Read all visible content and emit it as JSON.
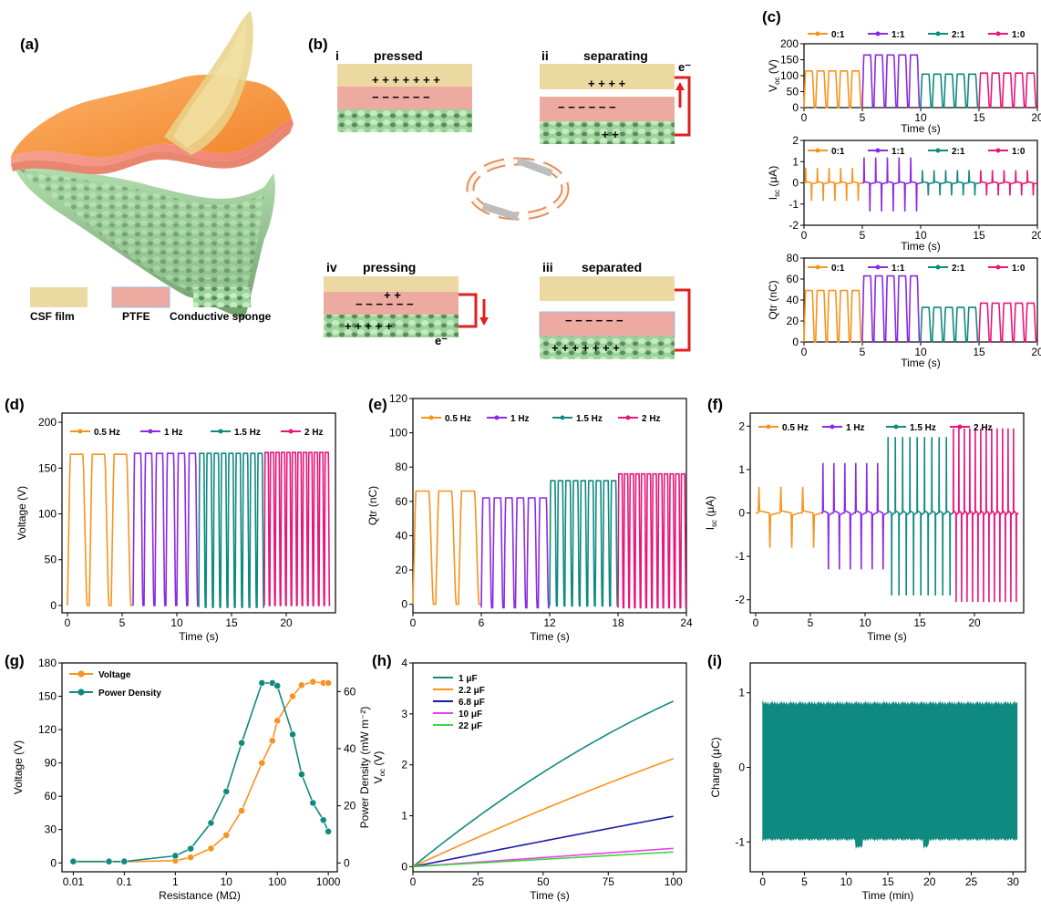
{
  "colors": {
    "orange": "#f7931e",
    "purple": "#8a2be2",
    "teal": "#0f8a80",
    "pink": "#e8177a",
    "blue": "#1a1aa8",
    "magenta": "#f03cf0",
    "green": "#3ed63e",
    "csf": "#ecd9a1",
    "ptfe": "#ecaaa0",
    "sponge": "#a9d8a6",
    "wire": "#e02020"
  },
  "panel_a": {
    "label": "(a)",
    "legend": [
      "CSF film",
      "PTFE",
      "Conductive sponge"
    ]
  },
  "panel_b": {
    "label": "(b)",
    "steps": [
      {
        "num": "i",
        "title": "pressed"
      },
      {
        "num": "ii",
        "title": "separating",
        "electron": "e⁻"
      },
      {
        "num": "iv",
        "title": "pressing",
        "electron": "e⁻"
      },
      {
        "num": "iii",
        "title": "separated"
      }
    ]
  },
  "panel_c": {
    "label": "(c)"
  },
  "panel_d": {
    "label": "(d)"
  },
  "panel_e": {
    "label": "(e)"
  },
  "panel_f": {
    "label": "(f)"
  },
  "panel_g": {
    "label": "(g)"
  },
  "panel_h": {
    "label": "(h)"
  },
  "panel_i": {
    "label": "(i)"
  },
  "chart_data": [
    {
      "id": "c1",
      "type": "line",
      "ylabel": "V",
      "ylabel_sub": "oc",
      "ylabel_unit": " (V)",
      "xlabel": "Time (s)",
      "xlim": [
        0,
        20
      ],
      "ylim": [
        0,
        200
      ],
      "xticks": [
        0,
        5,
        10,
        15,
        20
      ],
      "yticks": [
        0,
        50,
        100,
        150,
        200
      ],
      "series": [
        {
          "name": "0:1",
          "color": "orange",
          "x_range": [
            0,
            5
          ],
          "cycles": 5,
          "min": 0,
          "max": 115
        },
        {
          "name": "1:1",
          "color": "purple",
          "x_range": [
            5,
            10
          ],
          "cycles": 5,
          "min": 0,
          "max": 165
        },
        {
          "name": "2:1",
          "color": "teal",
          "x_range": [
            10,
            15
          ],
          "cycles": 5,
          "min": 0,
          "max": 105
        },
        {
          "name": "1:0",
          "color": "pink",
          "x_range": [
            15,
            20
          ],
          "cycles": 5,
          "min": 0,
          "max": 108
        }
      ]
    },
    {
      "id": "c2",
      "type": "line",
      "ylabel": "I",
      "ylabel_sub": "sc",
      "ylabel_unit": " (μA)",
      "xlabel": "Time (s)",
      "xlim": [
        0,
        20
      ],
      "ylim": [
        -2,
        2
      ],
      "xticks": [
        0,
        5,
        10,
        15,
        20
      ],
      "yticks": [
        -2,
        -1,
        0,
        1,
        2
      ],
      "series": [
        {
          "name": "0:1",
          "color": "orange",
          "x_range": [
            0,
            5
          ],
          "cycles": 5,
          "peak_pos": 0.7,
          "peak_neg": -0.85
        },
        {
          "name": "1:1",
          "color": "purple",
          "x_range": [
            5,
            10
          ],
          "cycles": 5,
          "peak_pos": 1.2,
          "peak_neg": -1.35
        },
        {
          "name": "2:1",
          "color": "teal",
          "x_range": [
            10,
            15
          ],
          "cycles": 5,
          "peak_pos": 0.6,
          "peak_neg": -0.6
        },
        {
          "name": "1:0",
          "color": "pink",
          "x_range": [
            15,
            20
          ],
          "cycles": 5,
          "peak_pos": 0.6,
          "peak_neg": -0.6
        }
      ]
    },
    {
      "id": "c3",
      "type": "line",
      "ylabel": "Qtr (nC)",
      "xlabel": "Time (s)",
      "xlim": [
        0,
        20
      ],
      "ylim": [
        0,
        80
      ],
      "xticks": [
        0,
        5,
        10,
        15,
        20
      ],
      "yticks": [
        0,
        20,
        40,
        60,
        80
      ],
      "series": [
        {
          "name": "0:1",
          "color": "orange",
          "x_range": [
            0,
            5
          ],
          "cycles": 5,
          "min": 0,
          "max": 49
        },
        {
          "name": "1:1",
          "color": "purple",
          "x_range": [
            5,
            10
          ],
          "cycles": 5,
          "min": 0,
          "max": 63
        },
        {
          "name": "2:1",
          "color": "teal",
          "x_range": [
            10,
            15
          ],
          "cycles": 5,
          "min": 0,
          "max": 33
        },
        {
          "name": "1:0",
          "color": "pink",
          "x_range": [
            15,
            20
          ],
          "cycles": 5,
          "min": 0,
          "max": 37
        }
      ]
    },
    {
      "id": "d",
      "type": "line",
      "ylabel": "Voltage (V)",
      "xlabel": "Time (s)",
      "xlim": [
        -0.5,
        24.5
      ],
      "ylim": [
        -8,
        210
      ],
      "xticks": [
        0,
        5,
        10,
        15,
        20
      ],
      "yticks": [
        0,
        50,
        100,
        150,
        200
      ],
      "series": [
        {
          "name": "0.5 Hz",
          "color": "orange",
          "x_range": [
            0,
            6
          ],
          "cycles": 3,
          "min": 0,
          "max": 165
        },
        {
          "name": "1 Hz",
          "color": "purple",
          "x_range": [
            6,
            12
          ],
          "cycles": 6,
          "min": 0,
          "max": 166
        },
        {
          "name": "1.5 Hz",
          "color": "teal",
          "x_range": [
            12,
            18
          ],
          "cycles": 9,
          "min": -2,
          "max": 166
        },
        {
          "name": "2 Hz",
          "color": "pink",
          "x_range": [
            18,
            24
          ],
          "cycles": 12,
          "min": 0,
          "max": 167
        }
      ]
    },
    {
      "id": "e",
      "type": "line",
      "ylabel": "Qtr (nC)",
      "xlabel": "Time (s)",
      "xlim": [
        0,
        24
      ],
      "ylim": [
        -5,
        120
      ],
      "xticks": [
        0,
        6,
        12,
        18,
        24
      ],
      "yticks": [
        0,
        20,
        40,
        60,
        80,
        100,
        120
      ],
      "series": [
        {
          "name": "0.5 Hz",
          "color": "orange",
          "x_range": [
            0,
            6
          ],
          "cycles": 3,
          "min": 0,
          "max": 66
        },
        {
          "name": "1 Hz",
          "color": "purple",
          "x_range": [
            6,
            12
          ],
          "cycles": 6,
          "min": -2,
          "max": 62
        },
        {
          "name": "1.5 Hz",
          "color": "teal",
          "x_range": [
            12,
            18
          ],
          "cycles": 9,
          "min": -1,
          "max": 72
        },
        {
          "name": "2 Hz",
          "color": "pink",
          "x_range": [
            18,
            24
          ],
          "cycles": 12,
          "min": -2,
          "max": 76
        }
      ]
    },
    {
      "id": "f",
      "type": "line",
      "ylabel": "I",
      "ylabel_sub": "sc",
      "ylabel_unit": " (μA)",
      "xlabel": "Time (s)",
      "xlim": [
        -0.5,
        24.5
      ],
      "ylim": [
        -2.3,
        2.3
      ],
      "xticks": [
        0,
        5,
        10,
        15,
        20
      ],
      "yticks": [
        -2,
        -1,
        0,
        1,
        2
      ],
      "series": [
        {
          "name": "0.5 Hz",
          "color": "orange",
          "x_range": [
            0,
            6
          ],
          "cycles": 3,
          "peak_pos": 0.6,
          "peak_neg": -0.8
        },
        {
          "name": "1 Hz",
          "color": "purple",
          "x_range": [
            6,
            12
          ],
          "cycles": 6,
          "peak_pos": 1.15,
          "peak_neg": -1.3
        },
        {
          "name": "1.5 Hz",
          "color": "teal",
          "x_range": [
            12,
            18
          ],
          "cycles": 9,
          "peak_pos": 1.75,
          "peak_neg": -1.9
        },
        {
          "name": "2 Hz",
          "color": "pink",
          "x_range": [
            18,
            24
          ],
          "cycles": 12,
          "peak_pos": 1.95,
          "peak_neg": -2.05
        }
      ]
    },
    {
      "id": "g",
      "type": "line",
      "xlabel": "Resistance (MΩ)",
      "ylabel": "Voltage (V)",
      "ylabel2": "Power Density (mW m⁻²)",
      "xscale": "log",
      "xlim": [
        0.006,
        1500
      ],
      "ylim": [
        -8,
        180
      ],
      "ylim2": [
        -3.1,
        70
      ],
      "xticks": [
        0.01,
        0.1,
        1,
        10,
        100,
        1000
      ],
      "xticklabels": [
        "0.01",
        "0.1",
        "1",
        "10",
        "100",
        "1000"
      ],
      "yticks": [
        0,
        30,
        60,
        90,
        120,
        150,
        180
      ],
      "yticks2": [
        0,
        20,
        40,
        60
      ],
      "x": [
        0.01,
        0.05,
        0.1,
        1,
        2,
        5,
        10,
        20,
        50,
        80,
        100,
        200,
        300,
        500,
        800,
        1000
      ],
      "series": [
        {
          "name": "Voltage",
          "color": "orange",
          "axis": "left",
          "values": [
            1,
            1,
            1,
            2,
            5,
            13,
            25,
            47,
            90,
            110,
            128,
            150,
            160,
            163,
            162,
            162
          ]
        },
        {
          "name": "Power Density",
          "color": "teal",
          "axis": "right",
          "values": [
            0.5,
            0.5,
            0.5,
            2.5,
            5,
            14,
            25,
            42,
            63,
            63,
            62,
            45,
            31,
            21,
            15,
            11
          ]
        }
      ]
    },
    {
      "id": "h",
      "type": "line",
      "xlabel": "Time (s)",
      "ylabel": "V",
      "ylabel_sub": "oc",
      "ylabel_unit": " (V)",
      "xlim": [
        0,
        105
      ],
      "ylim": [
        -0.1,
        4
      ],
      "xticks": [
        0,
        25,
        50,
        75,
        100
      ],
      "yticks": [
        0,
        1,
        2,
        3,
        4
      ],
      "series": [
        {
          "name": "1 μF",
          "color": "teal",
          "end": 3.25,
          "curv": 0.28
        },
        {
          "name": "2.2 μF",
          "color": "orange",
          "end": 2.12,
          "curv": 0.12
        },
        {
          "name": "6.8 μF",
          "color": "blue",
          "end": 0.99,
          "curv": 0.03
        },
        {
          "name": "10 μF",
          "color": "magenta",
          "end": 0.36,
          "curv": 0.0
        },
        {
          "name": "22 μF",
          "color": "green",
          "end": 0.29,
          "curv": 0.0
        }
      ]
    },
    {
      "id": "i",
      "type": "area",
      "xlabel": "Time (min)",
      "ylabel": "Charge (μC)",
      "xlim": [
        -1.5,
        31.5
      ],
      "ylim": [
        -1.4,
        1.4
      ],
      "xticks": [
        0,
        5,
        10,
        15,
        20,
        25,
        30
      ],
      "yticks": [
        -1,
        0,
        1
      ],
      "series": [
        {
          "name": "",
          "color": "teal",
          "x_range": [
            0,
            30.5
          ],
          "upper": 0.88,
          "lower": -0.98
        }
      ]
    }
  ]
}
